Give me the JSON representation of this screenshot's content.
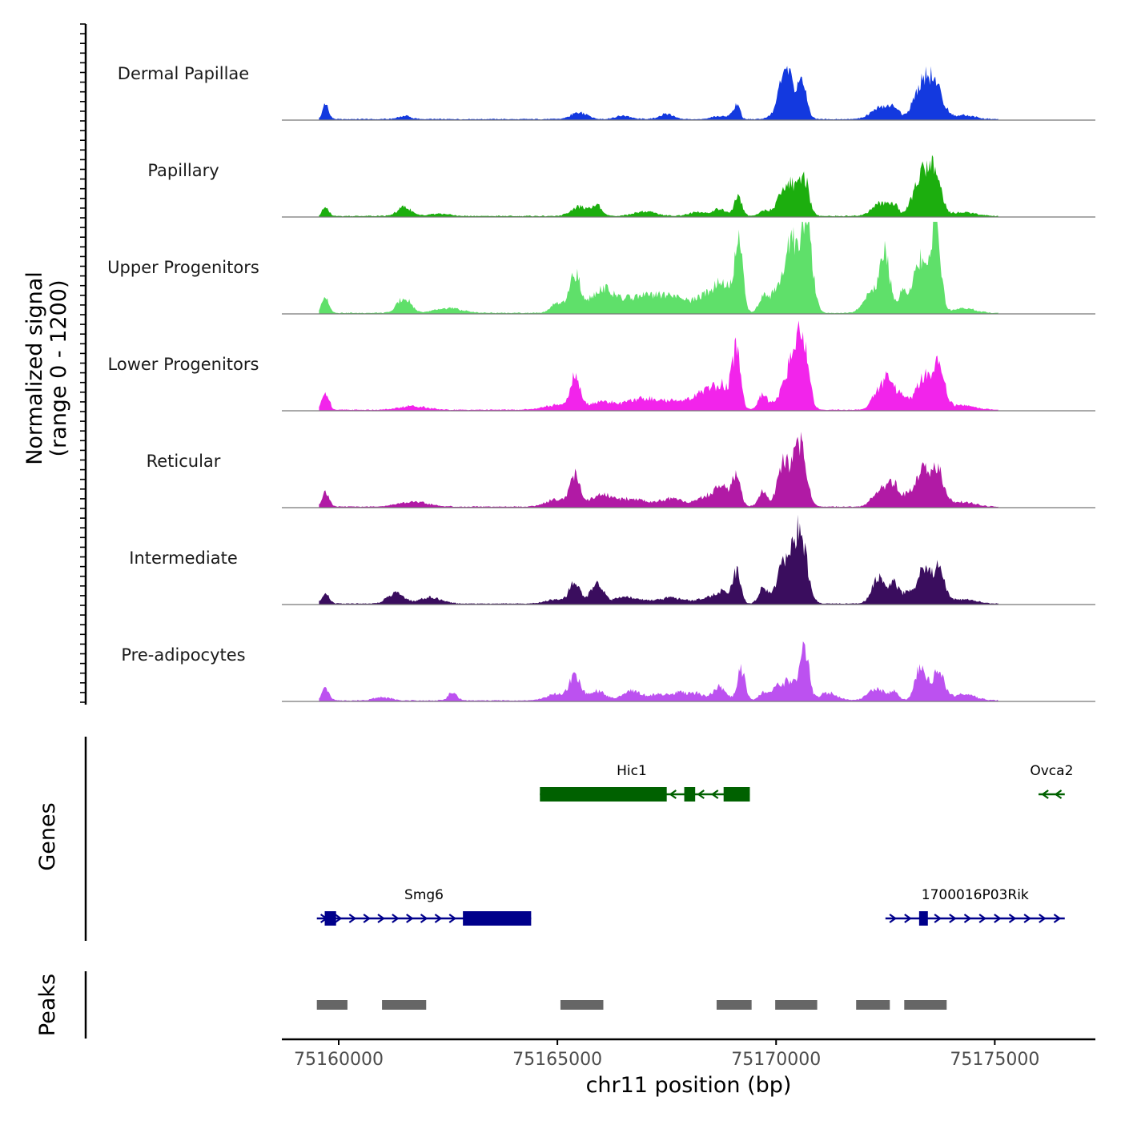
{
  "chart_data": {
    "type": "area",
    "chromosome": "chr11",
    "x_range": [
      75158700,
      75177300
    ],
    "signal_ylabel_line1": "Normalized signal",
    "signal_ylabel_line2": "(range 0 - 1200)",
    "signal_ylim": [
      0,
      1200
    ],
    "genes_label": "Genes",
    "peaks_label": "Peaks",
    "xlabel": "chr11 position (bp)",
    "x_ticks": [
      {
        "value": 75160000,
        "label": "75160000"
      },
      {
        "value": 75165000,
        "label": "75165000"
      },
      {
        "value": 75170000,
        "label": "75170000"
      },
      {
        "value": 75175000,
        "label": "75175000"
      }
    ],
    "tracks": [
      {
        "name": "Dermal Papillae",
        "color": "#1339df",
        "peaks": [
          [
            75159700,
            180,
            70
          ],
          [
            75161500,
            40,
            150
          ],
          [
            75165500,
            90,
            180
          ],
          [
            75166500,
            40,
            180
          ],
          [
            75167500,
            70,
            150
          ],
          [
            75168700,
            40,
            150
          ],
          [
            75169000,
            60,
            90
          ],
          [
            75169120,
            180,
            60
          ],
          [
            75170300,
            380,
            220
          ],
          [
            75170600,
            380,
            90
          ],
          [
            75170200,
            280,
            120
          ],
          [
            75172400,
            150,
            220
          ],
          [
            75172700,
            130,
            100
          ],
          [
            75173300,
            350,
            180
          ],
          [
            75173600,
            450,
            190
          ],
          [
            75174300,
            50,
            250
          ]
        ]
      },
      {
        "name": "Papillary",
        "color": "#1cae0e",
        "peaks": [
          [
            75159700,
            130,
            70
          ],
          [
            75161500,
            120,
            150
          ],
          [
            75162300,
            30,
            250
          ],
          [
            75165500,
            120,
            180
          ],
          [
            75165900,
            130,
            120
          ],
          [
            75167000,
            60,
            250
          ],
          [
            75168200,
            50,
            200
          ],
          [
            75168700,
            90,
            150
          ],
          [
            75169130,
            240,
            90
          ],
          [
            75169700,
            60,
            100
          ],
          [
            75170300,
            430,
            220
          ],
          [
            75170650,
            400,
            100
          ],
          [
            75172400,
            170,
            200
          ],
          [
            75172700,
            120,
            80
          ],
          [
            75173300,
            450,
            180
          ],
          [
            75173600,
            550,
            160
          ],
          [
            75174300,
            50,
            250
          ]
        ]
      },
      {
        "name": "Upper Progenitors",
        "color": "#5fe06a",
        "peaks": [
          [
            75159700,
            220,
            80
          ],
          [
            75161500,
            200,
            150
          ],
          [
            75162500,
            60,
            300
          ],
          [
            75165000,
            120,
            150
          ],
          [
            75165400,
            500,
            120
          ],
          [
            75166000,
            300,
            250
          ],
          [
            75166800,
            200,
            400
          ],
          [
            75167600,
            200,
            350
          ],
          [
            75168400,
            200,
            250
          ],
          [
            75168800,
            350,
            200
          ],
          [
            75169150,
            900,
            90
          ],
          [
            75169700,
            220,
            100
          ],
          [
            75169950,
            200,
            100
          ],
          [
            75170350,
            900,
            180
          ],
          [
            75170700,
            1000,
            130
          ],
          [
            75172200,
            300,
            180
          ],
          [
            75172500,
            700,
            110
          ],
          [
            75172900,
            300,
            100
          ],
          [
            75173300,
            700,
            150
          ],
          [
            75173650,
            1100,
            110
          ],
          [
            75174300,
            60,
            250
          ]
        ]
      },
      {
        "name": "Lower Progenitors",
        "color": "#f224eb",
        "peaks": [
          [
            75159700,
            220,
            80
          ],
          [
            75161700,
            50,
            300
          ],
          [
            75165000,
            60,
            300
          ],
          [
            75165400,
            400,
            110
          ],
          [
            75166000,
            100,
            300
          ],
          [
            75167000,
            150,
            400
          ],
          [
            75167900,
            120,
            300
          ],
          [
            75168400,
            200,
            200
          ],
          [
            75168800,
            300,
            200
          ],
          [
            75169100,
            720,
            90
          ],
          [
            75169700,
            200,
            100
          ],
          [
            75170100,
            150,
            150
          ],
          [
            75170450,
            800,
            170
          ],
          [
            75170650,
            550,
            110
          ],
          [
            75172350,
            250,
            150
          ],
          [
            75172600,
            350,
            120
          ],
          [
            75172900,
            200,
            120
          ],
          [
            75173350,
            400,
            150
          ],
          [
            75173700,
            550,
            150
          ],
          [
            75174300,
            60,
            250
          ]
        ]
      },
      {
        "name": "Reticular",
        "color": "#b11aa5",
        "peaks": [
          [
            75159700,
            200,
            80
          ],
          [
            75161700,
            60,
            350
          ],
          [
            75165000,
            100,
            250
          ],
          [
            75165400,
            380,
            110
          ],
          [
            75166000,
            150,
            250
          ],
          [
            75166700,
            100,
            300
          ],
          [
            75167600,
            100,
            300
          ],
          [
            75168500,
            150,
            250
          ],
          [
            75168800,
            200,
            150
          ],
          [
            75169100,
            400,
            90
          ],
          [
            75169700,
            200,
            100
          ],
          [
            75170200,
            400,
            150
          ],
          [
            75170550,
            800,
            140
          ],
          [
            75170150,
            200,
            120
          ],
          [
            75172400,
            250,
            180
          ],
          [
            75172700,
            260,
            110
          ],
          [
            75173000,
            150,
            100
          ],
          [
            75173350,
            500,
            150
          ],
          [
            75173700,
            450,
            150
          ],
          [
            75174300,
            60,
            250
          ]
        ]
      },
      {
        "name": "Intermediate",
        "color": "#3a0d5e",
        "peaks": [
          [
            75159700,
            130,
            80
          ],
          [
            75161300,
            140,
            180
          ],
          [
            75162100,
            80,
            250
          ],
          [
            75165000,
            60,
            250
          ],
          [
            75165400,
            280,
            110
          ],
          [
            75165900,
            250,
            150
          ],
          [
            75166600,
            80,
            300
          ],
          [
            75167600,
            80,
            300
          ],
          [
            75168500,
            80,
            250
          ],
          [
            75168800,
            120,
            150
          ],
          [
            75169100,
            400,
            90
          ],
          [
            75169700,
            200,
            100
          ],
          [
            75170200,
            500,
            180
          ],
          [
            75170550,
            900,
            150
          ],
          [
            75172350,
            350,
            150
          ],
          [
            75172700,
            250,
            110
          ],
          [
            75173000,
            150,
            100
          ],
          [
            75173350,
            450,
            130
          ],
          [
            75173700,
            450,
            150
          ],
          [
            75174300,
            60,
            250
          ]
        ]
      },
      {
        "name": "Pre-adipocytes",
        "color": "#bc51f0",
        "peaks": [
          [
            75159700,
            150,
            80
          ],
          [
            75161000,
            40,
            200
          ],
          [
            75162600,
            100,
            100
          ],
          [
            75165000,
            80,
            250
          ],
          [
            75165400,
            300,
            120
          ],
          [
            75165900,
            120,
            200
          ],
          [
            75166700,
            130,
            200
          ],
          [
            75167300,
            80,
            200
          ],
          [
            75167800,
            100,
            200
          ],
          [
            75168200,
            80,
            150
          ],
          [
            75168700,
            180,
            150
          ],
          [
            75169200,
            400,
            90
          ],
          [
            75169700,
            100,
            100
          ],
          [
            75170000,
            150,
            120
          ],
          [
            75170300,
            250,
            150
          ],
          [
            75170650,
            650,
            100
          ],
          [
            75171200,
            100,
            200
          ],
          [
            75172300,
            150,
            200
          ],
          [
            75172700,
            100,
            100
          ],
          [
            75173300,
            450,
            120
          ],
          [
            75173700,
            350,
            150
          ],
          [
            75174300,
            80,
            250
          ]
        ]
      }
    ],
    "genes": [
      {
        "name": "Hic1",
        "row": 1,
        "strand": "-",
        "color": "#006100",
        "start": 75164600,
        "end": 75169400,
        "label_pos": 75166700,
        "exons": [
          [
            75164600,
            75167500
          ],
          [
            75167900,
            75168150
          ],
          [
            75168800,
            75169400
          ]
        ]
      },
      {
        "name": "Ovca2",
        "row": 1,
        "strand": "-",
        "color": "#006100",
        "start": 75176000,
        "end": 75176600,
        "label_pos": 75176300,
        "exons": []
      },
      {
        "name": "Smg6",
        "row": 2,
        "strand": "+",
        "color": "#00008b",
        "start": 75159500,
        "end": 75164400,
        "label_pos": 75161950,
        "exons": [
          [
            75159680,
            75159940
          ],
          [
            75162840,
            75164400
          ]
        ]
      },
      {
        "name": "1700016P03Rik",
        "row": 2,
        "strand": "+",
        "color": "#00008b",
        "start": 75172500,
        "end": 75176600,
        "label_pos": 75174550,
        "exons": [
          [
            75173270,
            75173470
          ]
        ]
      }
    ],
    "peak_regions": [
      [
        75159500,
        75160200
      ],
      [
        75160990,
        75162000
      ],
      [
        75165070,
        75166050
      ],
      [
        75168640,
        75169440
      ],
      [
        75169980,
        75170940
      ],
      [
        75171830,
        75172600
      ],
      [
        75172930,
        75173900
      ]
    ],
    "peak_color": "#666666"
  }
}
